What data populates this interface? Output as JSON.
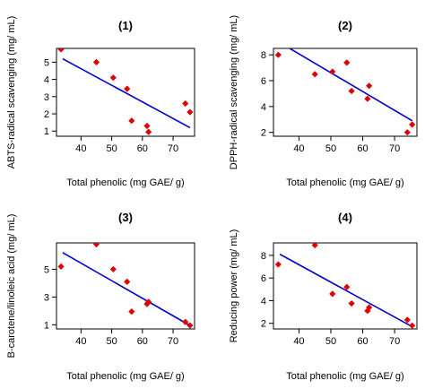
{
  "chart_data": [
    {
      "type": "scatter",
      "title": "(1)",
      "xlabel": "Total phenolic (mg GAE/ g)",
      "ylabel": "ABTS-radical scavenging (mg/ mL)",
      "xlim": [
        32,
        77
      ],
      "ylim": [
        0.7,
        5.8
      ],
      "xticks": [
        40,
        50,
        60,
        70
      ],
      "yticks": [
        1,
        2,
        3,
        4,
        5
      ],
      "points_color": "#e00000",
      "line_color": "#0000cc",
      "points": [
        [
          33.5,
          5.75
        ],
        [
          45,
          5.0
        ],
        [
          50.5,
          4.1
        ],
        [
          55,
          3.45
        ],
        [
          56.5,
          1.6
        ],
        [
          61.5,
          1.3
        ],
        [
          62,
          0.95
        ],
        [
          74,
          2.6
        ],
        [
          75.5,
          2.1
        ]
      ],
      "fit_line": [
        [
          34,
          5.2
        ],
        [
          75.5,
          1.2
        ]
      ]
    },
    {
      "type": "scatter",
      "title": "(2)",
      "xlabel": "Total phenolic (mg GAE/ g)",
      "ylabel": "DPPH-radical scavenging (mg/ mL)",
      "xlim": [
        32,
        77
      ],
      "ylim": [
        1.7,
        8.5
      ],
      "xticks": [
        40,
        50,
        60,
        70
      ],
      "yticks": [
        2,
        4,
        6,
        8
      ],
      "points_color": "#e00000",
      "line_color": "#0000cc",
      "points": [
        [
          33.5,
          8.0
        ],
        [
          45,
          6.5
        ],
        [
          50.5,
          6.7
        ],
        [
          55,
          7.4
        ],
        [
          56.5,
          5.2
        ],
        [
          61.5,
          4.6
        ],
        [
          62,
          5.6
        ],
        [
          74,
          2.0
        ],
        [
          75.5,
          2.6
        ]
      ],
      "fit_line": [
        [
          34,
          8.95
        ],
        [
          75.5,
          2.9
        ]
      ]
    },
    {
      "type": "scatter",
      "title": "(3)",
      "xlabel": "Total phenolic (mg GAE/ g)",
      "ylabel": "B-carotene/linoleic acid (mg/ mL)",
      "xlim": [
        32,
        77
      ],
      "ylim": [
        0.7,
        6.9
      ],
      "xticks": [
        40,
        50,
        60,
        70
      ],
      "yticks": [
        1,
        3,
        5
      ],
      "points_color": "#e00000",
      "line_color": "#0000cc",
      "points": [
        [
          33.5,
          5.2
        ],
        [
          45,
          6.8
        ],
        [
          50.5,
          5.0
        ],
        [
          55,
          4.1
        ],
        [
          56.5,
          1.95
        ],
        [
          61.5,
          2.5
        ],
        [
          62,
          2.65
        ],
        [
          74,
          1.2
        ],
        [
          75.5,
          0.95
        ]
      ],
      "fit_line": [
        [
          34,
          6.2
        ],
        [
          75.5,
          0.95
        ]
      ]
    },
    {
      "type": "scatter",
      "title": "(4)",
      "xlabel": "Total phenolic (mg GAE/ g)",
      "ylabel": "Reducing power (mg/ mL)",
      "xlim": [
        32,
        77
      ],
      "ylim": [
        1.5,
        9.1
      ],
      "xticks": [
        40,
        50,
        60,
        70
      ],
      "yticks": [
        2,
        4,
        6,
        8
      ],
      "points_color": "#e00000",
      "line_color": "#0000cc",
      "points": [
        [
          33.5,
          7.2
        ],
        [
          45,
          8.9
        ],
        [
          50.5,
          4.6
        ],
        [
          55,
          5.2
        ],
        [
          56.5,
          3.75
        ],
        [
          61.5,
          3.1
        ],
        [
          62,
          3.4
        ],
        [
          74,
          2.3
        ],
        [
          75.5,
          1.8
        ]
      ],
      "fit_line": [
        [
          34,
          8.1
        ],
        [
          75.5,
          1.7
        ]
      ]
    }
  ]
}
